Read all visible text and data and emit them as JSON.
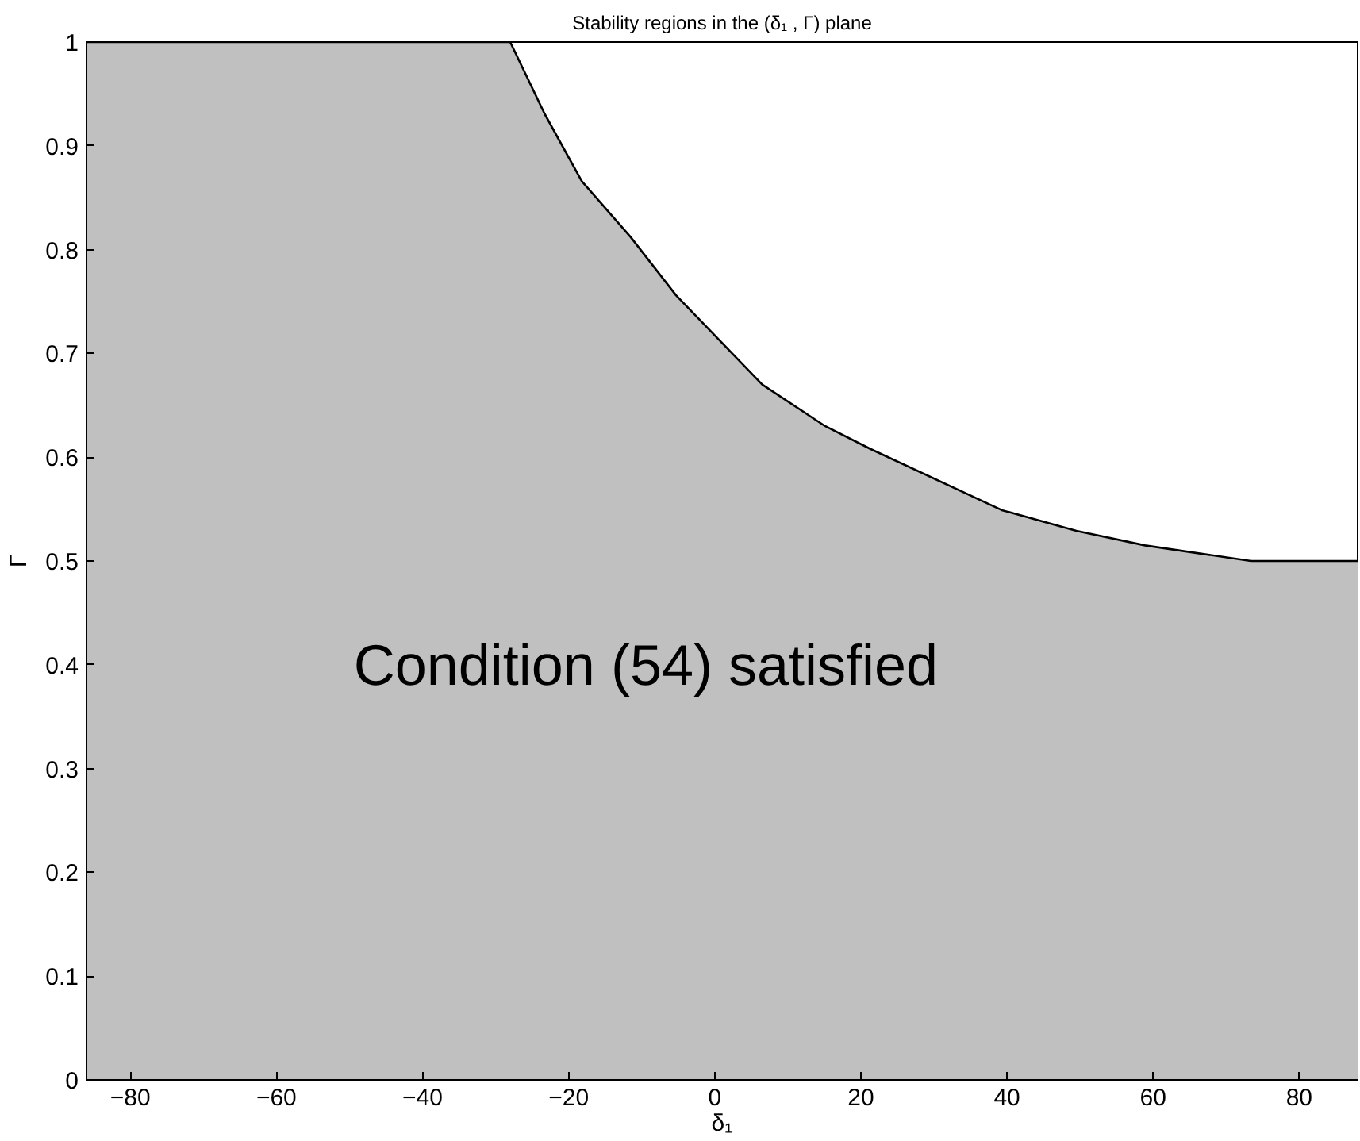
{
  "chart_data": {
    "type": "area",
    "title": "Stability regions in the (δ₁ , Γ) plane",
    "xlabel": "δ₁",
    "ylabel": "Γ",
    "annotations": [
      "Condition (54) satisfied"
    ],
    "x": [
      -86,
      -28,
      -23.3,
      -18.2,
      -11.5,
      -5.3,
      6.5,
      15.1,
      21.3,
      39.3,
      49.5,
      58.9,
      73.4,
      88
    ],
    "series": [
      {
        "color": "#c0c0c0",
        "values": [
          1,
          1,
          0.931,
          0.866,
          0.812,
          0.756,
          0.67,
          0.63,
          0.608,
          0.549,
          0.529,
          0.515,
          0.5,
          0.5
        ]
      }
    ],
    "xlim": [
      -86,
      88
    ],
    "ylim": [
      0,
      1
    ],
    "xticks": [
      {
        "value": -80,
        "label": "−80"
      },
      {
        "value": -60,
        "label": "−60"
      },
      {
        "value": -40,
        "label": "−40"
      },
      {
        "value": -20,
        "label": "−20"
      },
      0,
      20,
      40,
      60,
      80
    ],
    "yticks": [
      0,
      0.1,
      0.2,
      0.3,
      0.4,
      0.5,
      0.6,
      0.7,
      0.8,
      0.9,
      1
    ],
    "grid": false
  }
}
